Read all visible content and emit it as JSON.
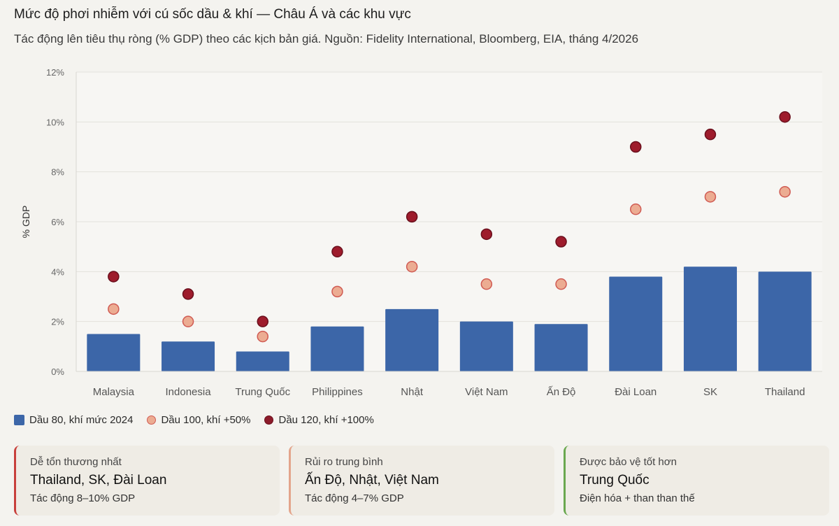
{
  "header": {
    "title": "Mức độ phơi nhiễm với cú sốc dầu & khí — Châu Á và các khu vực",
    "subtitle": "Tác động lên tiêu thụ ròng (% GDP) theo các kịch bản giá. Nguồn: Fidelity International, Bloomberg, EIA, tháng 4/2026"
  },
  "chart_data": {
    "type": "bar",
    "ylabel": "% GDP",
    "xlabel": "",
    "ylim": [
      0,
      12
    ],
    "yticks": [
      0,
      2,
      4,
      6,
      8,
      10,
      12
    ],
    "ytick_labels": [
      "0%",
      "2%",
      "4%",
      "6%",
      "8%",
      "10%",
      "12%"
    ],
    "grid": true,
    "legend_position": "bottom-left",
    "categories": [
      "Malaysia",
      "Indonesia",
      "Trung Quốc",
      "Philippines",
      "Nhật",
      "Việt Nam",
      "Ấn Độ",
      "Đài Loan",
      "SK",
      "Thailand"
    ],
    "series": [
      {
        "name": "Dầu 80, khí mức 2024",
        "kind": "bar",
        "color": "#3c66a8",
        "values": [
          1.5,
          1.2,
          0.8,
          1.8,
          2.5,
          2.0,
          1.9,
          3.8,
          4.2,
          4.0
        ]
      },
      {
        "name": "Dầu 100, khí +50%",
        "kind": "point",
        "color": "#ecac92",
        "values": [
          2.5,
          2.0,
          1.4,
          3.2,
          4.2,
          3.5,
          3.5,
          6.5,
          7.0,
          7.2
        ]
      },
      {
        "name": "Dầu 120, khí +100%",
        "kind": "point",
        "color": "#9e1c2c",
        "values": [
          3.8,
          3.1,
          2.0,
          4.8,
          6.2,
          5.5,
          5.2,
          9.0,
          9.5,
          10.2
        ]
      }
    ]
  },
  "cards": [
    {
      "label": "Dễ tổn thương nhất",
      "value": "Thailand, SK, Đài Loan",
      "note": "Tác động 8–10% GDP",
      "accent": "#c8403c"
    },
    {
      "label": "Rủi ro trung bình",
      "value": "Ấn Độ, Nhật, Việt Nam",
      "note": "Tác động 4–7% GDP",
      "accent": "#e3a58c"
    },
    {
      "label": "Được bảo vệ tốt hơn",
      "value": "Trung Quốc",
      "note": "Điện hóa + than than thế",
      "accent": "#6aa84f"
    }
  ]
}
